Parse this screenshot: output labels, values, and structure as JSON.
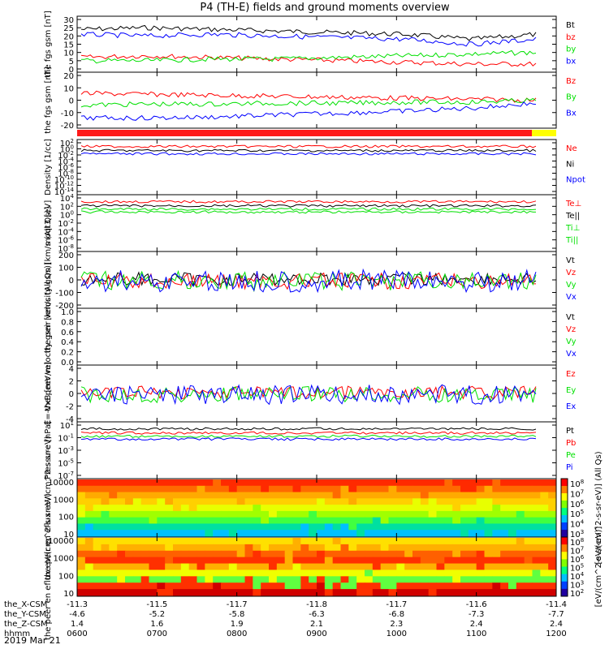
{
  "title": "P4 (TH-E) fields and ground moments overview",
  "date_label": "2019 Mar 21",
  "orbit_rows": [
    {
      "label": "the_X-CSM",
      "values": [
        "-11.3",
        "-11.5",
        "-11.7",
        "-11.8",
        "-11.7",
        "-11.6",
        "-11.4"
      ]
    },
    {
      "label": "the_Y-CSM",
      "values": [
        "-4.6",
        "-5.2",
        "-5.8",
        "-6.3",
        "-6.8",
        "-7.3",
        "-7.7"
      ]
    },
    {
      "label": "the_Z-CSM",
      "values": [
        "1.4",
        "1.6",
        "1.9",
        "2.1",
        "2.3",
        "2.4",
        "2.4"
      ]
    },
    {
      "label": "hhmm",
      "values": [
        "0600",
        "0700",
        "0800",
        "0900",
        "1000",
        "1100",
        "1200"
      ]
    }
  ],
  "colors": {
    "black": "#000000",
    "red": "#ff0000",
    "green": "#00e000",
    "blue": "#0000ff"
  },
  "chart_data": [
    {
      "type": "line",
      "ylabel": "the fgs gsm [nT]",
      "ylim": [
        0,
        30
      ],
      "y_ticks": [
        "30",
        "25",
        "20",
        "15",
        "10",
        "5",
        "0"
      ],
      "series": [
        {
          "name": "Bt",
          "values": [
            24,
            25,
            24,
            23,
            22,
            21,
            18,
            21
          ]
        },
        {
          "name": "bz",
          "values": [
            7,
            8,
            7,
            6,
            5,
            4,
            3,
            3
          ]
        },
        {
          "name": "by",
          "values": [
            5,
            5,
            6,
            6,
            7,
            8,
            9,
            10
          ]
        },
        {
          "name": "bx",
          "values": [
            21,
            20,
            21,
            20,
            19,
            18,
            15,
            18
          ]
        }
      ]
    },
    {
      "type": "line",
      "ylabel": "the fgs gsm [nT]",
      "ylim": [
        -25,
        25
      ],
      "y_ticks": [
        "20",
        "10",
        "0",
        "-10",
        "-20"
      ],
      "series": [
        {
          "name": "Bz",
          "values": [
            7,
            6,
            5,
            4,
            3,
            2,
            1,
            0
          ]
        },
        {
          "name": "By",
          "values": [
            -5,
            -4,
            -4,
            -3,
            -3,
            -2,
            -2,
            0
          ]
        },
        {
          "name": "Bx",
          "values": [
            -18,
            -18,
            -17,
            -15,
            -13,
            -11,
            -8,
            -3
          ]
        }
      ]
    },
    {
      "type": "line",
      "ylabel": "Density [1/cc]",
      "yscale": "log",
      "y_ticks": [
        "10^2",
        "10^0",
        "10^-2",
        "10^-4",
        "10^-6",
        "10^-8",
        "10^-10",
        "10^-12",
        "10^-14"
      ],
      "series": [
        {
          "name": "Ne"
        },
        {
          "name": "Ni"
        },
        {
          "name": "Npot"
        }
      ]
    },
    {
      "type": "line",
      "ylabel": "moqt3 [eV]",
      "yscale": "log",
      "y_ticks": [
        "10^4",
        "10^2",
        "10^0",
        "10^-2",
        "10^-4",
        "10^-6",
        "10^-8"
      ],
      "series": [
        {
          "name": "Te⊥"
        },
        {
          "name": "Te||"
        },
        {
          "name": "Ti⊥"
        },
        {
          "name": "Ti||"
        }
      ]
    },
    {
      "type": "line",
      "ylabel": "the peir velocity gsm [km/s (All Qs)]",
      "ylim": [
        -200,
        200
      ],
      "y_ticks": [
        "200",
        "100",
        "0",
        "-100",
        "-200"
      ],
      "series": [
        {
          "name": "Vt"
        },
        {
          "name": "Vz"
        },
        {
          "name": "Vy"
        },
        {
          "name": "Vx"
        }
      ]
    },
    {
      "type": "line",
      "ylabel": "the peer velocity gsm [km/s (All Qs)]",
      "ylim": [
        0,
        1
      ],
      "y_ticks": [
        "1.0",
        "0.8",
        "0.6",
        "0.4",
        "0.2",
        "0.0"
      ],
      "series": [
        {
          "name": "Vt"
        },
        {
          "name": "Vz"
        },
        {
          "name": "Vy"
        },
        {
          "name": "Vx"
        }
      ]
    },
    {
      "type": "line",
      "ylabel": "E=-VxB [mV/m]",
      "ylim": [
        -4,
        4
      ],
      "y_ticks": [
        "4",
        "2",
        "0",
        "-2",
        "-4"
      ],
      "series": [
        {
          "name": "Ez"
        },
        {
          "name": "Ey"
        },
        {
          "name": "Ex"
        }
      ]
    },
    {
      "type": "line",
      "ylabel": "Pressure [nPa]",
      "yscale": "log",
      "y_ticks": [
        "10^1",
        "10^-1",
        "10^-3",
        "10^-5",
        "10^-7"
      ],
      "series": [
        {
          "name": "Pt"
        },
        {
          "name": "Pb"
        },
        {
          "name": "Pe"
        },
        {
          "name": "Pi"
        }
      ]
    },
    {
      "type": "heatmap",
      "ylabel": "the peir en eflux eV/(cm^2-s-sr-eV)",
      "yscale": "log",
      "y_ticks": [
        "10000",
        "1000",
        "100",
        "10"
      ],
      "colorbar_ticks": [
        "10^8",
        "10^7",
        "10^6",
        "10^5",
        "10^4",
        "10^3"
      ],
      "colorbar_label": "[eV/(cm^2-s-sr-eV)] (All Qs)"
    },
    {
      "type": "heatmap",
      "ylabel": "the peer en eflux eV/(cm^2-s-sr-eV)",
      "yscale": "log",
      "y_ticks": [
        "10000",
        "1000",
        "100",
        "10"
      ],
      "colorbar_ticks": [
        "10^8",
        "10^7",
        "10^6",
        "10^5",
        "10^4",
        "10^3",
        "10^2"
      ],
      "colorbar_label": "[eV/(cm^2-s-sr-eV)]"
    }
  ]
}
